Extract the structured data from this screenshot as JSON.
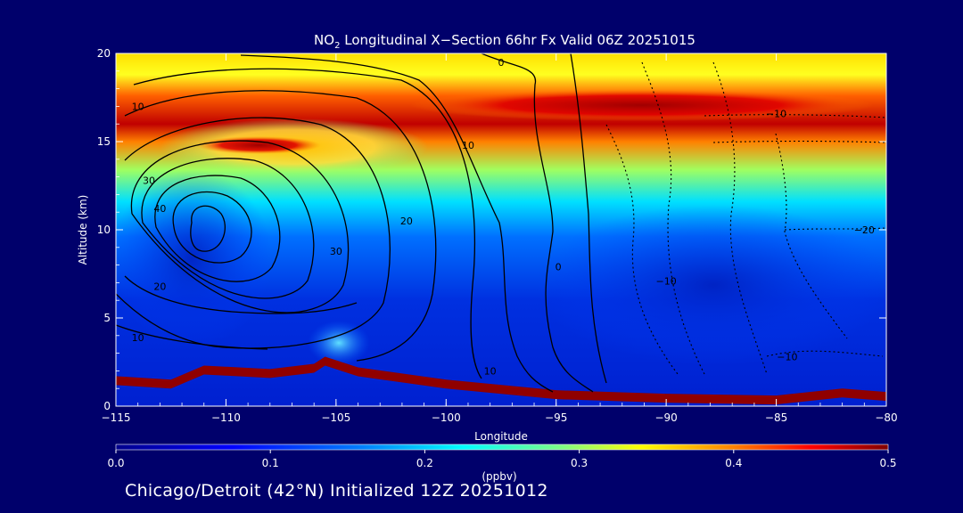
{
  "chart_data": {
    "type": "heatmap",
    "title_prefix": "NO",
    "title_subscript": "2",
    "title_rest": " Longitudinal X−Section 66hr  Fx Valid 06Z 20251015",
    "xlabel": "Longitude",
    "ylabel": "Altitude (km)",
    "xlim": [
      -115,
      -80
    ],
    "ylim": [
      0,
      20
    ],
    "x_ticks": [
      -115,
      -110,
      -105,
      -100,
      -95,
      -90,
      -85,
      -80
    ],
    "x_tick_labels": [
      "−115",
      "−110",
      "−105",
      "−100",
      "−95",
      "−90",
      "−85",
      "−80"
    ],
    "y_ticks": [
      0,
      5,
      10,
      15,
      20
    ],
    "y_tick_labels": [
      "0",
      "5",
      "10",
      "15",
      "20"
    ],
    "colorbar": {
      "label": "(ppbv)",
      "min": 0.0,
      "max": 0.5,
      "ticks": [
        0.0,
        0.1,
        0.2,
        0.3,
        0.4,
        0.5
      ],
      "tick_labels": [
        "0.0",
        "0.1",
        "0.2",
        "0.3",
        "0.4",
        "0.5"
      ]
    },
    "terrain_profile": [
      {
        "lon": -115,
        "alt": 1.7
      },
      {
        "lon": -112.5,
        "alt": 1.5
      },
      {
        "lon": -111,
        "alt": 2.3
      },
      {
        "lon": -108,
        "alt": 2.1
      },
      {
        "lon": -106,
        "alt": 2.4
      },
      {
        "lon": -105.5,
        "alt": 2.8
      },
      {
        "lon": -104,
        "alt": 2.2
      },
      {
        "lon": -100,
        "alt": 1.5
      },
      {
        "lon": -95,
        "alt": 0.9
      },
      {
        "lon": -90,
        "alt": 0.7
      },
      {
        "lon": -85,
        "alt": 0.6
      },
      {
        "lon": -82,
        "alt": 1.0
      },
      {
        "lon": -80,
        "alt": 0.8
      }
    ],
    "contour_labels": [
      {
        "text": "0",
        "lon": -97.5,
        "alt": 19.5
      },
      {
        "text": "10",
        "lon": -114,
        "alt": 17.0
      },
      {
        "text": "10",
        "lon": -99.0,
        "alt": 14.8
      },
      {
        "text": "30",
        "lon": -113.5,
        "alt": 12.8
      },
      {
        "text": "40",
        "lon": -113.0,
        "alt": 11.2
      },
      {
        "text": "20",
        "lon": -101.8,
        "alt": 10.5
      },
      {
        "text": "30",
        "lon": -105.0,
        "alt": 8.8
      },
      {
        "text": "0",
        "lon": -94.9,
        "alt": 7.9
      },
      {
        "text": "20",
        "lon": -113.0,
        "alt": 6.8
      },
      {
        "text": "10",
        "lon": -114.0,
        "alt": 3.9
      },
      {
        "text": "10",
        "lon": -98.0,
        "alt": 2.0
      },
      {
        "text": "−10",
        "lon": -85.0,
        "alt": 16.6
      },
      {
        "text": "−20",
        "lon": -81.0,
        "alt": 10.0
      },
      {
        "text": "−10",
        "lon": -90.0,
        "alt": 7.1
      },
      {
        "text": "−10",
        "lon": -84.5,
        "alt": 2.8
      }
    ]
  },
  "footer": "Chicago/Detroit (42°N) Initialized 12Z 20251012"
}
